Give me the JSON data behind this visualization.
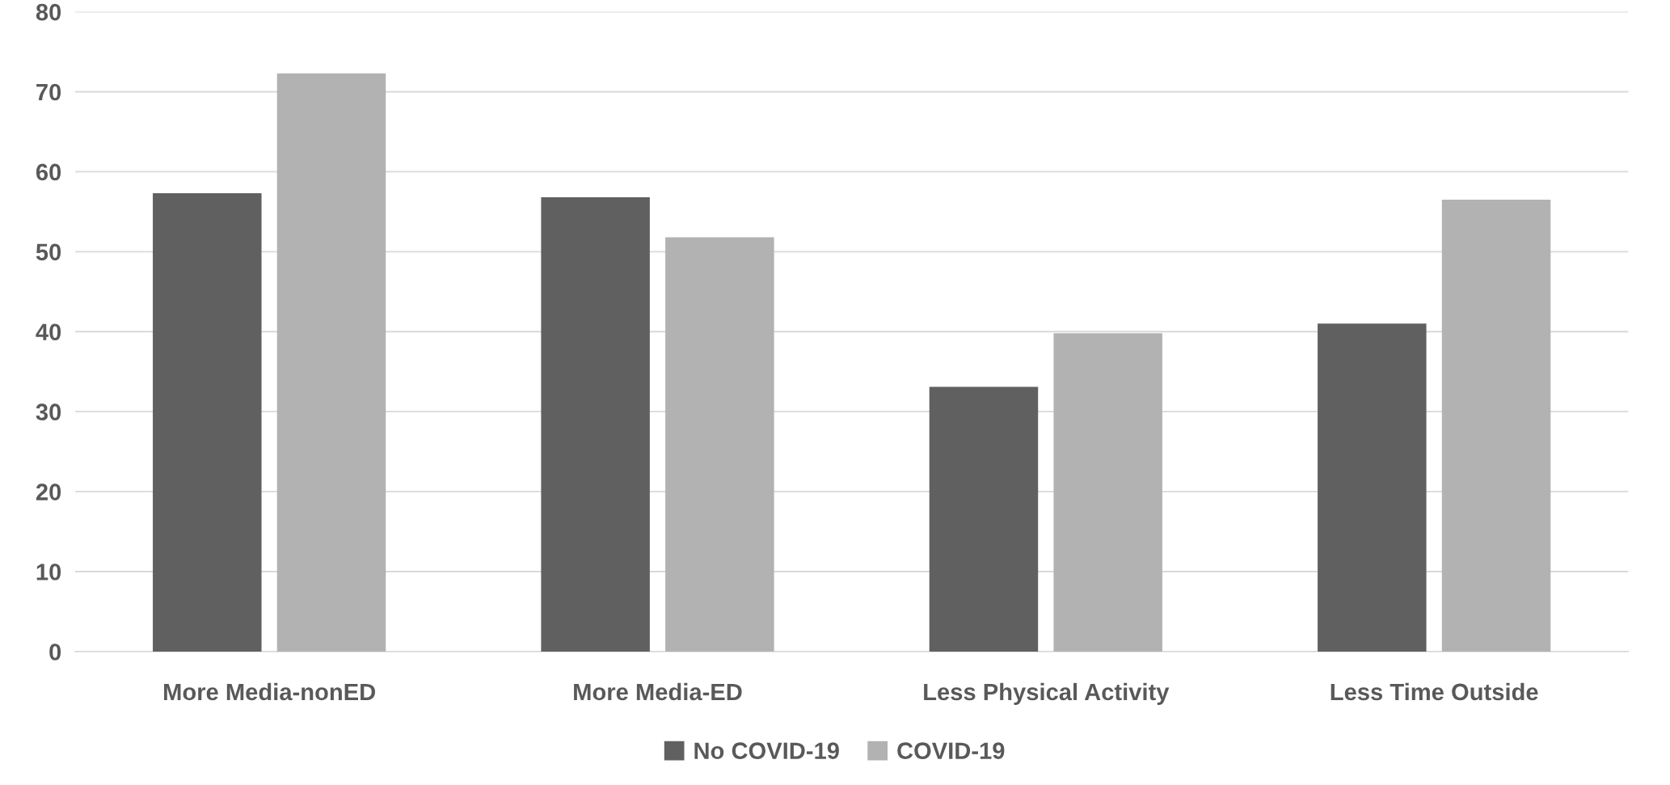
{
  "chart_data": {
    "type": "bar",
    "categories": [
      "More Media-nonED",
      "More Media-ED",
      "Less Physical Activity",
      "Less Time Outside"
    ],
    "series": [
      {
        "name": "No COVID-19",
        "color": "#606060",
        "values": [
          57.3,
          56.8,
          33.1,
          41.0
        ]
      },
      {
        "name": "COVID-19",
        "color": "#b2b2b2",
        "values": [
          72.3,
          51.8,
          39.8,
          56.5
        ]
      }
    ],
    "ylim": [
      0,
      80
    ],
    "yticks": [
      0,
      10,
      20,
      30,
      40,
      50,
      60,
      70,
      80
    ],
    "grid": "y",
    "legend": "bottom"
  }
}
